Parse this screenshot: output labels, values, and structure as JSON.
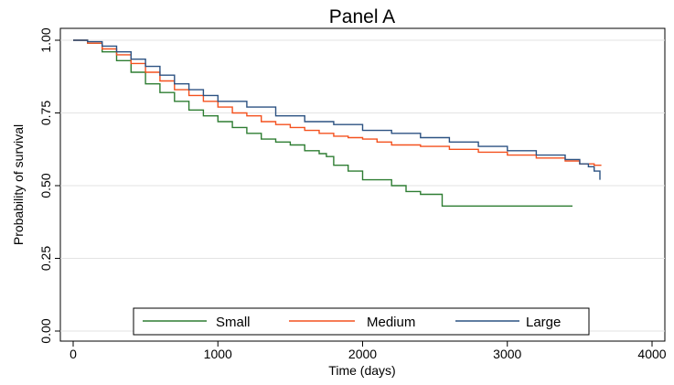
{
  "chart_data": {
    "type": "line",
    "title": "Panel A",
    "xlabel": "Time (days)",
    "ylabel": "Probability of survival",
    "xlim": [
      0,
      4000
    ],
    "ylim": [
      0,
      1
    ],
    "x_ticks": [
      0,
      1000,
      2000,
      3000,
      4000
    ],
    "x_tick_labels": [
      "0",
      "1000",
      "2000",
      "3000",
      "4000"
    ],
    "y_ticks": [
      0,
      0.25,
      0.5,
      0.75,
      1.0
    ],
    "y_tick_labels": [
      "0.00",
      "0.25",
      "0.50",
      "0.75",
      "1.00"
    ],
    "grid": "horizontal",
    "legend_position": "bottom",
    "series": [
      {
        "name": "Small",
        "color": "#2e7d32",
        "x": [
          0,
          100,
          200,
          300,
          400,
          500,
          600,
          700,
          800,
          900,
          1000,
          1100,
          1200,
          1300,
          1400,
          1500,
          1600,
          1700,
          1750,
          1800,
          1900,
          2000,
          2100,
          2200,
          2300,
          2400,
          2550,
          2700,
          3000,
          3200,
          3450
        ],
        "y": [
          1.0,
          0.99,
          0.96,
          0.93,
          0.89,
          0.85,
          0.82,
          0.79,
          0.76,
          0.74,
          0.72,
          0.7,
          0.68,
          0.66,
          0.65,
          0.64,
          0.62,
          0.61,
          0.6,
          0.57,
          0.55,
          0.52,
          0.52,
          0.5,
          0.48,
          0.47,
          0.43,
          0.43,
          0.43,
          0.43,
          0.43
        ]
      },
      {
        "name": "Medium",
        "color": "#f4511e",
        "x": [
          0,
          100,
          200,
          300,
          400,
          500,
          600,
          700,
          800,
          900,
          1000,
          1100,
          1200,
          1300,
          1400,
          1500,
          1600,
          1700,
          1800,
          1900,
          2000,
          2100,
          2200,
          2400,
          2600,
          2800,
          3000,
          3200,
          3400,
          3500,
          3600,
          3650
        ],
        "y": [
          1.0,
          0.99,
          0.97,
          0.95,
          0.92,
          0.89,
          0.86,
          0.83,
          0.81,
          0.79,
          0.77,
          0.75,
          0.74,
          0.72,
          0.71,
          0.7,
          0.69,
          0.68,
          0.67,
          0.665,
          0.66,
          0.65,
          0.64,
          0.635,
          0.625,
          0.615,
          0.605,
          0.595,
          0.585,
          0.575,
          0.57,
          0.57
        ]
      },
      {
        "name": "Large",
        "color": "#2c5282",
        "x": [
          0,
          100,
          200,
          300,
          400,
          500,
          600,
          700,
          800,
          900,
          1000,
          1200,
          1400,
          1600,
          1800,
          2000,
          2200,
          2400,
          2600,
          2800,
          3000,
          3200,
          3400,
          3500,
          3560,
          3600,
          3640
        ],
        "y": [
          1.0,
          0.995,
          0.98,
          0.96,
          0.935,
          0.91,
          0.88,
          0.85,
          0.83,
          0.81,
          0.79,
          0.77,
          0.74,
          0.72,
          0.71,
          0.69,
          0.68,
          0.665,
          0.65,
          0.635,
          0.62,
          0.605,
          0.59,
          0.575,
          0.565,
          0.55,
          0.52
        ]
      }
    ]
  }
}
